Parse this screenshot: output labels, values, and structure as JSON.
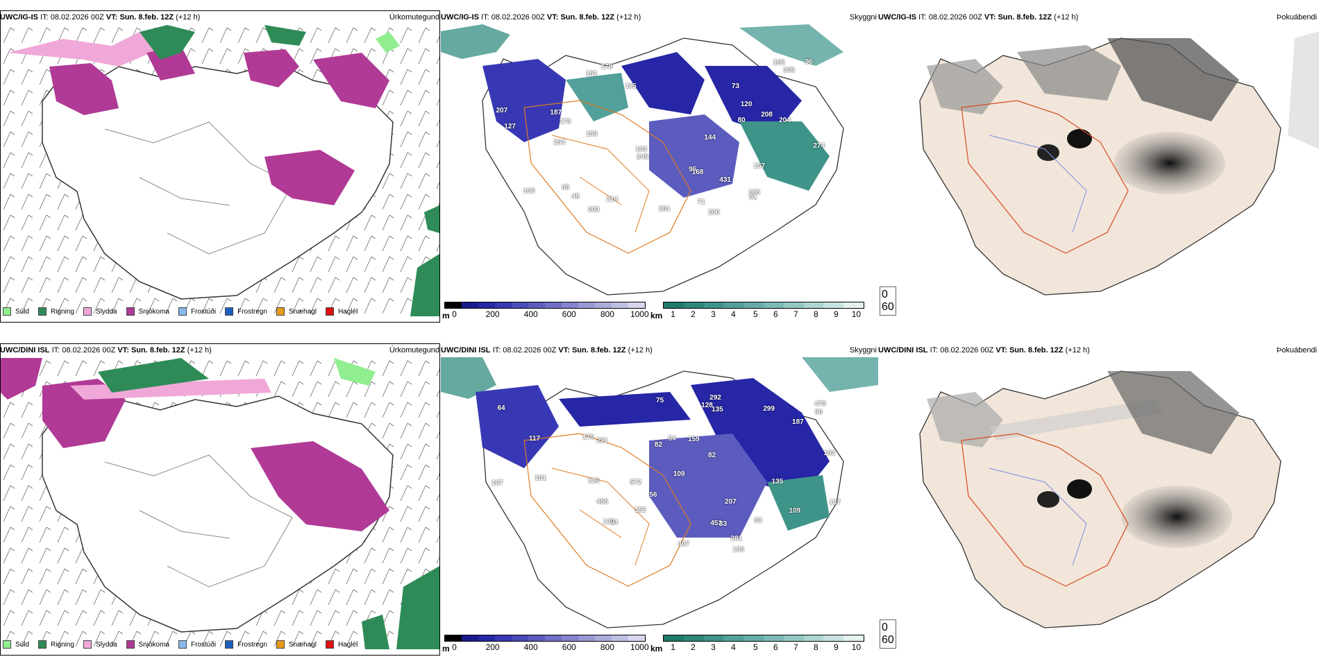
{
  "rows": [
    {
      "model": "UWC/IG-IS",
      "it_label": "IT:",
      "it_value": "08.02.2026 00Z",
      "vt_label": "VT:",
      "vt_value": "Sun. 8.feb. 12Z",
      "lead": "(+12 h)"
    },
    {
      "model": "UWC/DINI ISL",
      "it_label": "IT:",
      "it_value": "08.02.2026 00Z",
      "vt_label": "VT:",
      "vt_value": "Sun. 8.feb. 12Z",
      "lead": "(+12 h)"
    }
  ],
  "panel_titles": {
    "precip": "Úrkomutegund",
    "cloud": "Skyggni",
    "fog": "Þokuábendi"
  },
  "precip_legend": [
    {
      "label": "Súld",
      "color": "#90ee90"
    },
    {
      "label": "Rigning",
      "color": "#2e8b57"
    },
    {
      "label": "Slydda",
      "color": "#f0a8d8"
    },
    {
      "label": "Snjókoma",
      "color": "#b03a96"
    },
    {
      "label": "Frostúði",
      "color": "#87b8e8"
    },
    {
      "label": "Frostregn",
      "color": "#1f5fbf"
    },
    {
      "label": "Snæhagl",
      "color": "#e89a1a"
    },
    {
      "label": "Haglél",
      "color": "#e01010"
    }
  ],
  "cloud_scale": {
    "unit": "m",
    "ticks": [
      "0",
      "200",
      "400",
      "600",
      "800",
      "1000"
    ],
    "colors": [
      "#000000",
      "#1a1a8c",
      "#2626a6",
      "#3838b4",
      "#4a4ab8",
      "#5c5cbf",
      "#7070c6",
      "#8484cd",
      "#9898d4",
      "#acacdb",
      "#c0c0e3",
      "#d6d6ee"
    ]
  },
  "vis_scale": {
    "unit": "km",
    "ticks": [
      "1",
      "2",
      "3",
      "4",
      "5",
      "6",
      "7",
      "8",
      "9",
      "10"
    ],
    "colors": [
      "#1f7a6a",
      "#2f877a",
      "#3f948a",
      "#52a09a",
      "#66ada8",
      "#7cbab6",
      "#94c8c4",
      "#add6d2",
      "#c8e4e1",
      "#e4f2f0"
    ]
  },
  "fog_legend": [
    {
      "label": "0",
      "color": "#000000"
    },
    {
      "label": "60",
      "color": "#ffffff"
    }
  ],
  "cloud_labels_top": [
    "206",
    "151",
    "65",
    "187",
    "208",
    "71",
    "274",
    "159",
    "245",
    "48",
    "106",
    "207",
    "103",
    "95",
    "80",
    "186",
    "127",
    "365",
    "157",
    "204",
    "106",
    "168",
    "203",
    "91",
    "144",
    "120",
    "254",
    "173",
    "301",
    "195",
    "431",
    "96",
    "73",
    "214",
    "176"
  ],
  "cloud_labels_bottom": [
    "176",
    "167",
    "54",
    "135",
    "292",
    "479",
    "117",
    "82",
    "84",
    "64",
    "109",
    "152",
    "136",
    "101",
    "137",
    "75",
    "128",
    "109",
    "281",
    "452",
    "572",
    "207",
    "407",
    "90",
    "63",
    "83",
    "56",
    "126",
    "130",
    "291",
    "159",
    "187",
    "135",
    "102",
    "82",
    "486",
    "299"
  ]
}
